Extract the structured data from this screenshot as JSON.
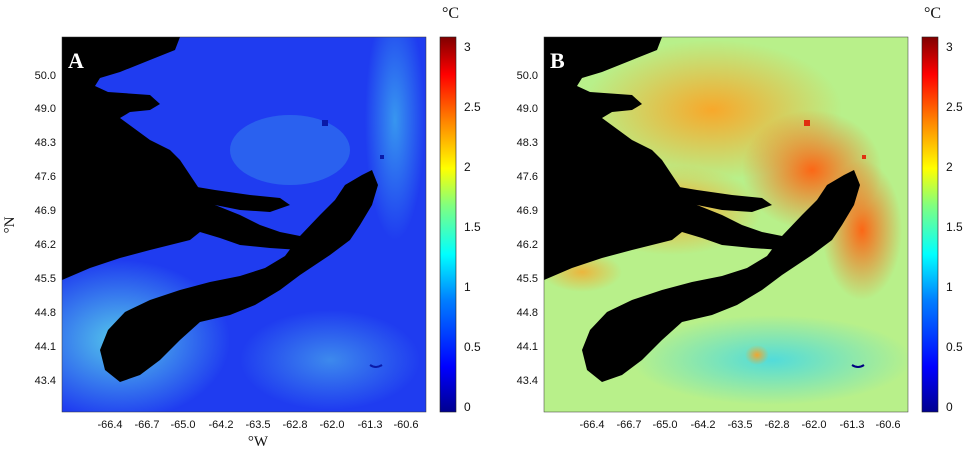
{
  "figure": {
    "colorbar": {
      "unit": "°C",
      "ticks": [
        "3",
        "2.5",
        "2",
        "1.5",
        "1",
        "0.5",
        "0"
      ],
      "range": [
        0,
        3.1
      ],
      "colors": [
        "#00008f",
        "#0000ff",
        "#0080ff",
        "#00ffff",
        "#80ff80",
        "#ffff00",
        "#ff8000",
        "#ff0000",
        "#800000"
      ]
    },
    "axes": {
      "y_ticks": [
        "50.0",
        "49.0",
        "48.3",
        "47.6",
        "46.9",
        "46.2",
        "45.5",
        "44.8",
        "44.1",
        "43.4"
      ],
      "x_ticks": [
        "-66.4",
        "-66.7",
        "-65.0",
        "-64.2",
        "-63.5",
        "-62.8",
        "-62.0",
        "-61.3",
        "-60.6"
      ],
      "y_label": "°N",
      "x_label": "°W"
    },
    "panels": [
      {
        "letter": "A",
        "palette": {
          "ocean_base": "#1f3cf0",
          "ocean_dark": "#1a22d8",
          "ocean_light": "#3fa6ee",
          "shelf": "#4fc4e6",
          "land": "#000000",
          "ring": "#0a1aa8"
        }
      },
      {
        "letter": "B",
        "palette": {
          "ocean_base": "#b8f08a",
          "ocean_dark": "#4fd6e4",
          "ocean_light": "#ffb020",
          "shelf": "#f5e23a",
          "land": "#000000",
          "ring": "#e03010"
        }
      }
    ]
  }
}
